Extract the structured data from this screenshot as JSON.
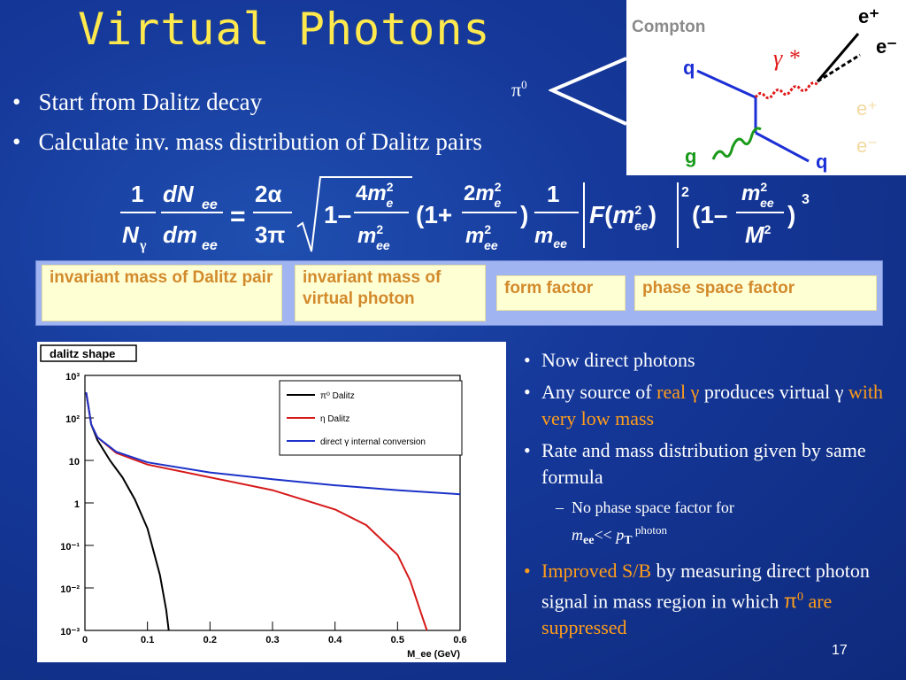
{
  "title": "Virtual Photons",
  "bullets": [
    "Start from Dalitz decay",
    "Calculate inv. mass distribution of Dalitz pairs"
  ],
  "decay": {
    "label": "π",
    "sup": "0"
  },
  "feynman": {
    "title": "Compton",
    "labels": {
      "q_in": "q",
      "g": "g",
      "q_out": "q",
      "gamma_star": "γ *",
      "e_plus": "e⁺",
      "e_minus": "e⁻",
      "faded_e_plus": "e⁺",
      "faded_e_minus": "e⁻"
    }
  },
  "formula": {
    "lhs_num": "1",
    "lhs_den": "N",
    "lhs_den_sub": "γ",
    "d_num": "dN",
    "d_num_sub": "ee",
    "d_den": "dm",
    "d_den_sub": "ee",
    "eq": "=",
    "c_num": "2α",
    "c_den": "3π"
  },
  "annotations": [
    "invariant mass of Dalitz pair",
    "invariant mass of virtual photon",
    "form factor",
    "phase space factor"
  ],
  "colors": {
    "title": "#ffe94d",
    "accent": "#ff9d1a",
    "pi0_curve": "#000000",
    "eta_curve": "#d61a1a",
    "direct_curve": "#1c32c8"
  },
  "chart_data": {
    "type": "line",
    "title": "dalitz shape",
    "xlabel": "M_ee (GeV)",
    "ylabel": "",
    "xlim": [
      0,
      0.6
    ],
    "ylim": [
      0.001,
      1000
    ],
    "yscale": "log",
    "xticks": [
      "0",
      "0.1",
      "0.2",
      "0.3",
      "0.4",
      "0.5",
      "0.6"
    ],
    "yticks": [
      "10³",
      "10²",
      "10",
      "1",
      "10⁻¹",
      "10⁻²",
      "10⁻³"
    ],
    "legend": "top-right",
    "series": [
      {
        "name": "π⁰ Dalitz",
        "x": [
          0.002,
          0.01,
          0.02,
          0.04,
          0.06,
          0.08,
          0.1,
          0.12,
          0.13,
          0.134
        ],
        "y": [
          400,
          70,
          30,
          10,
          4,
          1.2,
          0.25,
          0.02,
          0.003,
          0.001
        ]
      },
      {
        "name": "η Dalitz",
        "x": [
          0.002,
          0.01,
          0.02,
          0.05,
          0.1,
          0.2,
          0.3,
          0.4,
          0.45,
          0.5,
          0.52,
          0.54,
          0.547
        ],
        "y": [
          400,
          70,
          35,
          15,
          8,
          4,
          2,
          0.7,
          0.3,
          0.06,
          0.015,
          0.002,
          0.001
        ]
      },
      {
        "name": "direct γ internal conversion",
        "x": [
          0.002,
          0.01,
          0.02,
          0.05,
          0.1,
          0.2,
          0.3,
          0.4,
          0.5,
          0.6
        ],
        "y": [
          400,
          70,
          35,
          16,
          9,
          5.2,
          3.6,
          2.6,
          2.0,
          1.6
        ]
      }
    ]
  },
  "right": {
    "b1": "Now direct photons",
    "b2a": "Any  source of ",
    "b2b": "real γ",
    "b2c": " produces virtual γ ",
    "b2d": "with very low mass",
    "b3": "Rate and mass distribution given by same formula",
    "sub1": "No phase space factor for",
    "sub2_m": "m",
    "sub2_ee": "ee",
    "sub2_lt": "<< ",
    "sub2_p": "p",
    "sub2_T": "T",
    "sub2_photon": " photon",
    "b4a": "Improved S/B",
    "b4b": " by measuring direct photon signal in mass region in which ",
    "b4c": "π",
    "b4d": "0",
    "b4e": " are suppressed"
  },
  "page_number": "17"
}
